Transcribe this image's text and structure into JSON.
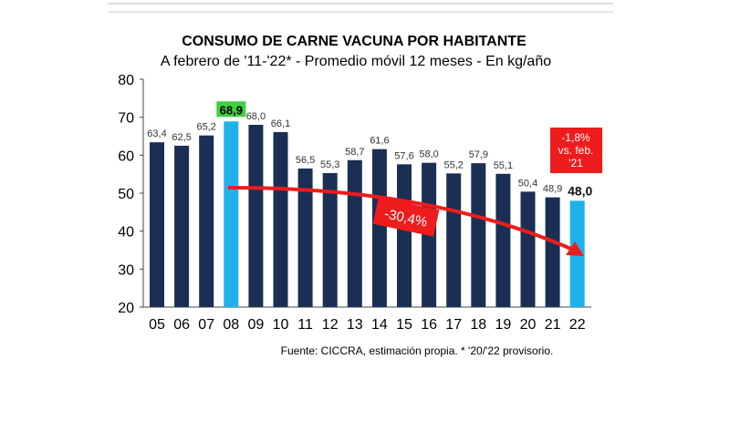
{
  "chart_data": {
    "type": "bar",
    "title": "CONSUMO DE CARNE VACUNA POR HABITANTE",
    "subtitle": "A febrero de '11-'22* - Promedio móvil 12 meses -  En kg/año",
    "categories": [
      "05",
      "06",
      "07",
      "08",
      "09",
      "10",
      "11",
      "12",
      "13",
      "14",
      "15",
      "16",
      "17",
      "18",
      "19",
      "20",
      "21",
      "22"
    ],
    "values": [
      63.4,
      62.5,
      65.2,
      68.9,
      68.0,
      66.1,
      56.5,
      55.3,
      58.7,
      61.6,
      57.6,
      58.0,
      55.2,
      57.9,
      55.1,
      50.4,
      48.9,
      48.0
    ],
    "labels": [
      "63,4",
      "62,5",
      "65,2",
      "68,9",
      "68,0",
      "66,1",
      "56,5",
      "55,3",
      "58,7",
      "61,6",
      "57,6",
      "58,0",
      "55,2",
      "57,9",
      "55,1",
      "50,4",
      "48,9",
      "48,0"
    ],
    "highlighted": [
      "08",
      "22"
    ],
    "ylim": [
      20,
      80
    ],
    "yticks": [
      20,
      30,
      40,
      50,
      60,
      70,
      80
    ],
    "annotations": {
      "trend": "-30,4%",
      "yoy_lines": [
        "-1,8%",
        "vs. feb.",
        "'21"
      ]
    },
    "footnote": "Fuente: CICCRA, estimación propia. * '20/'22 provisorio.",
    "colors": {
      "bar": "#1b2f55",
      "highlight": "#1fb2ea",
      "red": "#ee1c1c",
      "green": "#3fd13f"
    }
  }
}
